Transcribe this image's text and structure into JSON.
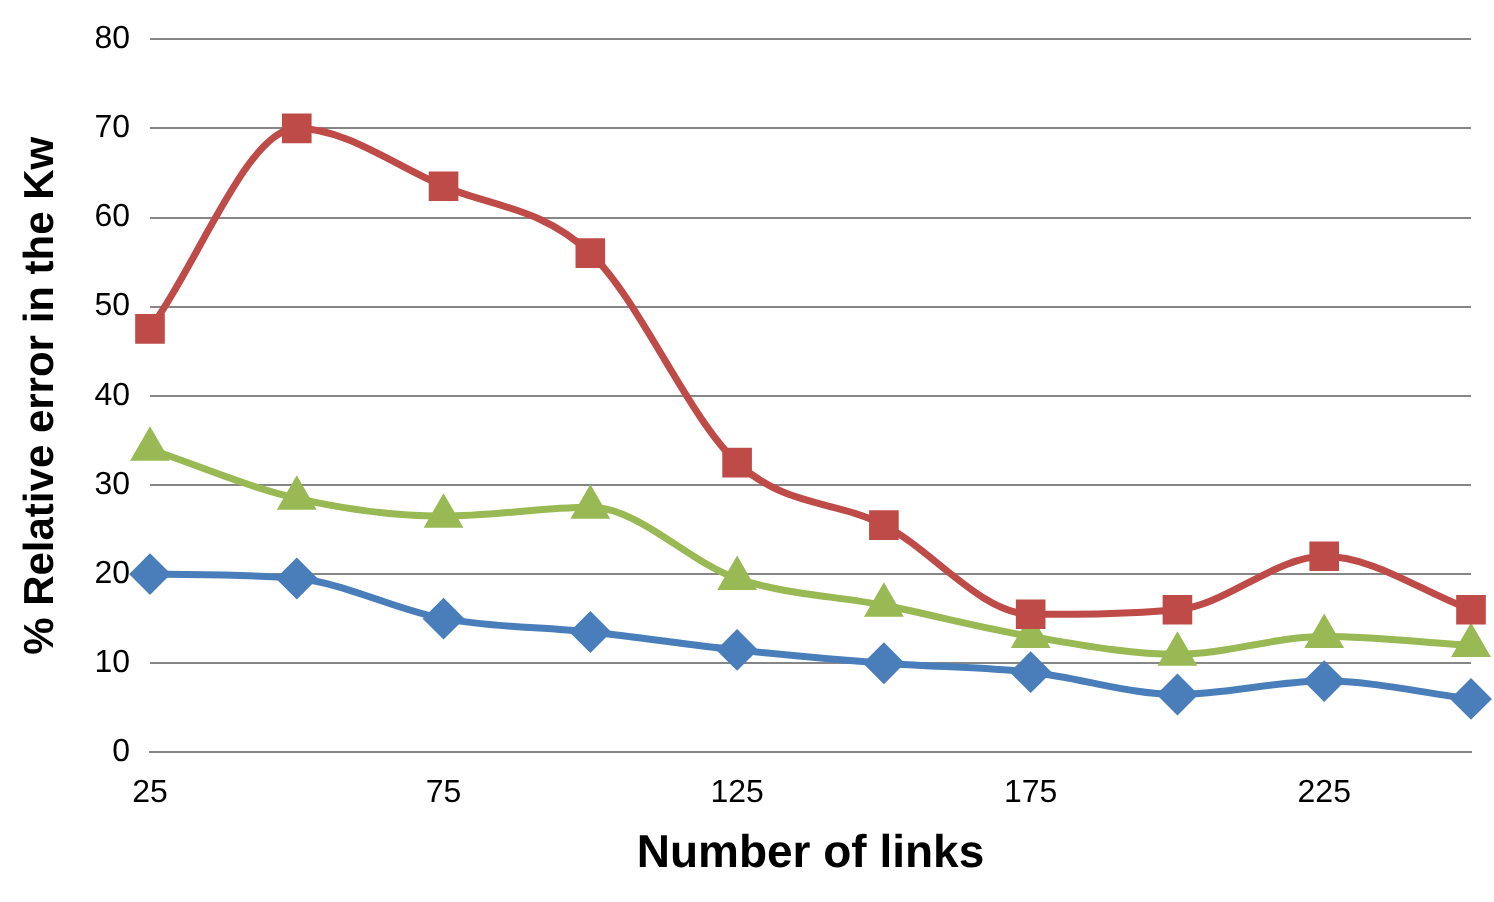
{
  "chart_data": {
    "type": "line",
    "xlabel": "Number of links",
    "ylabel": "% Relative error in the Kw",
    "categories": [
      "25",
      null,
      "75",
      null,
      "125",
      null,
      "175",
      null,
      "225",
      null
    ],
    "ylim": [
      0,
      80
    ],
    "yticks": [
      0,
      10,
      20,
      30,
      40,
      50,
      60,
      70,
      80
    ],
    "grid": "y",
    "legend": false,
    "series": [
      {
        "color": "#be4b48",
        "marker": "square",
        "values": [
          47.5,
          70,
          63.5,
          56,
          32.5,
          25.5,
          15.5,
          16,
          22,
          16
        ]
      },
      {
        "color": "#98b954",
        "marker": "triangle",
        "values": [
          34,
          28.5,
          26.5,
          27.5,
          19.5,
          16.5,
          13,
          11,
          13,
          12
        ]
      },
      {
        "color": "#4a7ebb",
        "marker": "diamond",
        "values": [
          20,
          19.5,
          15,
          13.5,
          11.5,
          10,
          9,
          6.5,
          8,
          6
        ]
      }
    ]
  }
}
